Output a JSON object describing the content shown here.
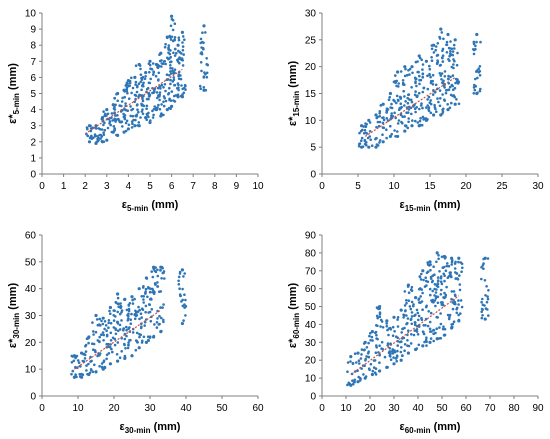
{
  "colors": {
    "points": "#2e75b6",
    "fit": "#c0504d",
    "axis": "#7f7f7f"
  },
  "chart_data": [
    {
      "type": "scatter",
      "xlabel": {
        "main": "ε",
        "sub": "5-min",
        "unit": " (mm)"
      },
      "ylabel": {
        "main": "ε*",
        "sub": "5-min",
        "unit": " (mm)"
      },
      "xlim": [
        0,
        10
      ],
      "ylim": [
        0,
        10
      ],
      "xticks": [
        "0",
        "1",
        "2",
        "3",
        "4",
        "5",
        "6",
        "7",
        "8",
        "9",
        "10"
      ],
      "yticks": [
        "0",
        "1",
        "2",
        "3",
        "4",
        "5",
        "6",
        "7",
        "8",
        "9",
        "10"
      ],
      "grid": false,
      "legend": "none",
      "columns": [
        {
          "x": 2.2,
          "ymin": 2.0,
          "ymax": 3.0
        },
        {
          "x": 2.5,
          "ymin": 1.9,
          "ymax": 3.0
        },
        {
          "x": 2.8,
          "ymin": 2.0,
          "ymax": 3.5
        },
        {
          "x": 3.0,
          "ymin": 2.1,
          "ymax": 4.0
        },
        {
          "x": 3.3,
          "ymin": 2.6,
          "ymax": 4.3
        },
        {
          "x": 3.5,
          "ymin": 2.4,
          "ymax": 5.0
        },
        {
          "x": 3.8,
          "ymin": 2.6,
          "ymax": 5.2
        },
        {
          "x": 4.0,
          "ymin": 2.8,
          "ymax": 5.8
        },
        {
          "x": 4.3,
          "ymin": 3.0,
          "ymax": 6.0
        },
        {
          "x": 4.5,
          "ymin": 3.0,
          "ymax": 6.8
        },
        {
          "x": 4.8,
          "ymin": 3.5,
          "ymax": 6.3
        },
        {
          "x": 5.0,
          "ymin": 3.2,
          "ymax": 7.0
        },
        {
          "x": 5.3,
          "ymin": 4.0,
          "ymax": 6.8
        },
        {
          "x": 5.5,
          "ymin": 3.6,
          "ymax": 7.5
        },
        {
          "x": 5.8,
          "ymin": 4.0,
          "ymax": 8.5
        },
        {
          "x": 6.0,
          "ymin": 4.2,
          "ymax": 9.8
        },
        {
          "x": 6.3,
          "ymin": 4.8,
          "ymax": 8.0
        },
        {
          "x": 6.5,
          "ymin": 4.8,
          "ymax": 8.8
        },
        {
          "x": 7.5,
          "ymin": 5.2,
          "ymax": 9.2
        }
      ],
      "fit": [
        [
          2.0,
          2.5
        ],
        [
          6.5,
          6.5
        ]
      ]
    },
    {
      "type": "scatter",
      "xlabel": {
        "main": "ε",
        "sub": "15-min",
        "unit": " (mm)"
      },
      "ylabel": {
        "main": "ε*",
        "sub": "15-min",
        "unit": " (mm)"
      },
      "xlim": [
        0,
        30
      ],
      "ylim": [
        0,
        30
      ],
      "xticks": [
        "0",
        "5",
        "10",
        "15",
        "20",
        "25",
        "30"
      ],
      "yticks": [
        "0",
        "5",
        "10",
        "15",
        "20",
        "25",
        "30"
      ],
      "grid": false,
      "legend": "none",
      "columns": [
        {
          "x": 5.5,
          "ymin": 5,
          "ymax": 9
        },
        {
          "x": 6.5,
          "ymin": 5,
          "ymax": 10
        },
        {
          "x": 7.5,
          "ymin": 5,
          "ymax": 11
        },
        {
          "x": 8.5,
          "ymin": 6,
          "ymax": 13
        },
        {
          "x": 9.5,
          "ymin": 7,
          "ymax": 15
        },
        {
          "x": 10.5,
          "ymin": 7,
          "ymax": 19
        },
        {
          "x": 11.5,
          "ymin": 8,
          "ymax": 20
        },
        {
          "x": 12.5,
          "ymin": 9,
          "ymax": 20
        },
        {
          "x": 13.5,
          "ymin": 9,
          "ymax": 22
        },
        {
          "x": 14.5,
          "ymin": 10,
          "ymax": 21
        },
        {
          "x": 15.5,
          "ymin": 11,
          "ymax": 24
        },
        {
          "x": 16.5,
          "ymin": 11,
          "ymax": 27
        },
        {
          "x": 17.5,
          "ymin": 12,
          "ymax": 26
        },
        {
          "x": 18.5,
          "ymin": 13,
          "ymax": 25
        },
        {
          "x": 21.5,
          "ymin": 15,
          "ymax": 26
        }
      ],
      "fit": [
        [
          6.0,
          7.0
        ],
        [
          18.5,
          18.0
        ]
      ]
    },
    {
      "type": "scatter",
      "xlabel": {
        "main": "ε",
        "sub": "30-min",
        "unit": " (mm)"
      },
      "ylabel": {
        "main": "ε*",
        "sub": "30-min",
        "unit": " (mm)"
      },
      "xlim": [
        0,
        60
      ],
      "ylim": [
        0,
        60
      ],
      "xticks": [
        "0",
        "10",
        "20",
        "30",
        "40",
        "50",
        "60"
      ],
      "yticks": [
        "0",
        "10",
        "20",
        "30",
        "40",
        "50",
        "60"
      ],
      "grid": false,
      "legend": "none",
      "columns": [
        {
          "x": 9,
          "ymin": 7,
          "ymax": 15
        },
        {
          "x": 11,
          "ymin": 7,
          "ymax": 16
        },
        {
          "x": 13,
          "ymin": 8,
          "ymax": 22
        },
        {
          "x": 15,
          "ymin": 9,
          "ymax": 30
        },
        {
          "x": 17,
          "ymin": 10,
          "ymax": 29
        },
        {
          "x": 19,
          "ymin": 12,
          "ymax": 33
        },
        {
          "x": 21,
          "ymin": 13,
          "ymax": 38
        },
        {
          "x": 23,
          "ymin": 14,
          "ymax": 36
        },
        {
          "x": 25,
          "ymin": 15,
          "ymax": 37
        },
        {
          "x": 27,
          "ymin": 18,
          "ymax": 40
        },
        {
          "x": 29,
          "ymin": 20,
          "ymax": 44
        },
        {
          "x": 31,
          "ymin": 22,
          "ymax": 48
        },
        {
          "x": 33,
          "ymin": 24,
          "ymax": 48
        },
        {
          "x": 39,
          "ymin": 27,
          "ymax": 47
        }
      ],
      "fit": [
        [
          9,
          10
        ],
        [
          33,
          32
        ]
      ]
    },
    {
      "type": "scatter",
      "xlabel": {
        "main": "ε",
        "sub": "60-min",
        "unit": " (mm)"
      },
      "ylabel": {
        "main": "ε*",
        "sub": "60-min",
        "unit": " (mm)"
      },
      "xlim": [
        0,
        90
      ],
      "ylim": [
        0,
        90
      ],
      "xticks": [
        "0",
        "10",
        "20",
        "30",
        "40",
        "50",
        "60",
        "70",
        "80",
        "90"
      ],
      "yticks": [
        "0",
        "10",
        "20",
        "30",
        "40",
        "50",
        "60",
        "70",
        "80",
        "90"
      ],
      "grid": false,
      "legend": "none",
      "columns": [
        {
          "x": 12,
          "ymin": 6,
          "ymax": 22
        },
        {
          "x": 15,
          "ymin": 8,
          "ymax": 24
        },
        {
          "x": 18,
          "ymin": 10,
          "ymax": 30
        },
        {
          "x": 21,
          "ymin": 12,
          "ymax": 36
        },
        {
          "x": 24,
          "ymin": 14,
          "ymax": 50
        },
        {
          "x": 27,
          "ymin": 16,
          "ymax": 42
        },
        {
          "x": 30,
          "ymin": 18,
          "ymax": 44
        },
        {
          "x": 33,
          "ymin": 20,
          "ymax": 48
        },
        {
          "x": 36,
          "ymin": 24,
          "ymax": 62
        },
        {
          "x": 39,
          "ymin": 26,
          "ymax": 55
        },
        {
          "x": 42,
          "ymin": 28,
          "ymax": 70
        },
        {
          "x": 45,
          "ymin": 30,
          "ymax": 75
        },
        {
          "x": 48,
          "ymin": 32,
          "ymax": 80
        },
        {
          "x": 51,
          "ymin": 34,
          "ymax": 78
        },
        {
          "x": 54,
          "ymin": 38,
          "ymax": 77
        },
        {
          "x": 57,
          "ymin": 42,
          "ymax": 77
        },
        {
          "x": 68,
          "ymin": 43,
          "ymax": 77
        }
      ],
      "fit": [
        [
          12,
          12
        ],
        [
          57,
          56
        ]
      ]
    }
  ]
}
